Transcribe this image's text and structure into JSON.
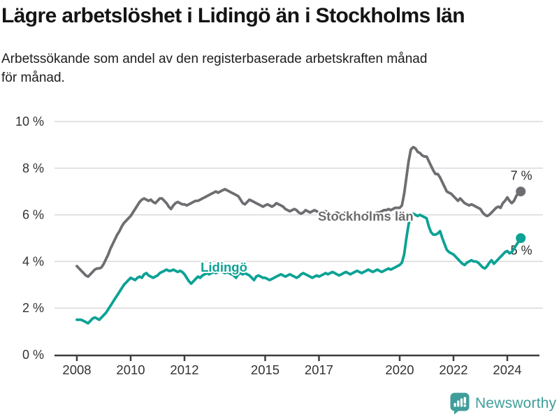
{
  "header": {
    "title": "Lägre arbetslöshet i Lidingö än i Stockholms län",
    "subtitle_lines": [
      "Arbetssökande som andel av den registerbaserade arbetskraften månad",
      "för månad."
    ]
  },
  "footer": {
    "brand": "Newsworthy",
    "brand_color": "#3f9e99"
  },
  "chart_data": {
    "type": "line",
    "x_start_year": 2008,
    "points_per_year": 12,
    "x_end_year": 2024.5,
    "ylim": [
      0,
      10
    ],
    "y_ticks": [
      0,
      2,
      4,
      6,
      8,
      10
    ],
    "y_tick_suffix": " %",
    "x_ticks": [
      2008,
      2010,
      2012,
      2015,
      2017,
      2020,
      2022,
      2024
    ],
    "grid": "horizontal",
    "legend_position": "inline-labels",
    "colors": {
      "grid": "#d9d9d9",
      "axis": "#3d3d3d",
      "tick_text": "#333333"
    },
    "series": [
      {
        "name": "Stockholms län",
        "color": "#6e6e72",
        "end_label": "7 %",
        "end_value": 7.0,
        "values": [
          3.8,
          3.7,
          3.6,
          3.5,
          3.4,
          3.35,
          3.45,
          3.55,
          3.65,
          3.7,
          3.7,
          3.75,
          3.9,
          4.1,
          4.3,
          4.55,
          4.75,
          4.95,
          5.15,
          5.3,
          5.5,
          5.65,
          5.75,
          5.85,
          5.95,
          6.1,
          6.25,
          6.4,
          6.55,
          6.65,
          6.7,
          6.65,
          6.6,
          6.65,
          6.55,
          6.5,
          6.6,
          6.7,
          6.7,
          6.6,
          6.5,
          6.35,
          6.25,
          6.4,
          6.5,
          6.55,
          6.5,
          6.45,
          6.45,
          6.4,
          6.45,
          6.5,
          6.55,
          6.6,
          6.6,
          6.65,
          6.7,
          6.75,
          6.8,
          6.85,
          6.9,
          6.95,
          7.0,
          6.95,
          7.0,
          7.05,
          7.1,
          7.05,
          7.0,
          6.95,
          6.9,
          6.85,
          6.8,
          6.65,
          6.5,
          6.45,
          6.55,
          6.65,
          6.6,
          6.55,
          6.5,
          6.45,
          6.4,
          6.35,
          6.4,
          6.45,
          6.4,
          6.35,
          6.4,
          6.5,
          6.45,
          6.4,
          6.35,
          6.25,
          6.2,
          6.15,
          6.2,
          6.25,
          6.2,
          6.1,
          6.05,
          6.1,
          6.2,
          6.15,
          6.1,
          6.15,
          6.2,
          6.15,
          6.1,
          6.05,
          6.1,
          6.15,
          6.1,
          6.05,
          6.0,
          6.05,
          6.1,
          6.05,
          6.0,
          6.05,
          6.1,
          6.05,
          6.0,
          5.95,
          6.0,
          6.05,
          6.0,
          5.95,
          6.0,
          6.05,
          6.1,
          6.05,
          6.0,
          6.05,
          6.1,
          6.1,
          6.15,
          6.2,
          6.2,
          6.25,
          6.2,
          6.25,
          6.3,
          6.3,
          6.3,
          6.4,
          6.9,
          7.6,
          8.3,
          8.8,
          8.9,
          8.85,
          8.7,
          8.65,
          8.55,
          8.5,
          8.5,
          8.3,
          8.1,
          7.9,
          7.75,
          7.75,
          7.6,
          7.4,
          7.2,
          7.0,
          6.95,
          6.9,
          6.8,
          6.7,
          6.6,
          6.7,
          6.6,
          6.5,
          6.45,
          6.4,
          6.45,
          6.4,
          6.35,
          6.3,
          6.25,
          6.1,
          6.0,
          5.95,
          6.0,
          6.1,
          6.2,
          6.3,
          6.35,
          6.3,
          6.5,
          6.6,
          6.75,
          6.6,
          6.5,
          6.6,
          6.8,
          6.95,
          7.0
        ]
      },
      {
        "name": "Lidingö",
        "color": "#0ca295",
        "end_label": "5 %",
        "end_value": 5.0,
        "values": [
          1.5,
          1.5,
          1.5,
          1.45,
          1.4,
          1.35,
          1.45,
          1.55,
          1.6,
          1.55,
          1.5,
          1.6,
          1.7,
          1.8,
          1.95,
          2.1,
          2.25,
          2.4,
          2.55,
          2.7,
          2.85,
          3.0,
          3.1,
          3.2,
          3.3,
          3.25,
          3.2,
          3.3,
          3.35,
          3.3,
          3.45,
          3.5,
          3.4,
          3.35,
          3.3,
          3.35,
          3.4,
          3.5,
          3.55,
          3.6,
          3.65,
          3.6,
          3.6,
          3.65,
          3.6,
          3.55,
          3.6,
          3.55,
          3.45,
          3.3,
          3.15,
          3.05,
          3.15,
          3.25,
          3.35,
          3.3,
          3.4,
          3.45,
          3.5,
          3.45,
          3.5,
          3.55,
          3.5,
          3.55,
          3.6,
          3.55,
          3.5,
          3.55,
          3.5,
          3.45,
          3.4,
          3.3,
          3.45,
          3.5,
          3.45,
          3.5,
          3.45,
          3.4,
          3.3,
          3.2,
          3.35,
          3.4,
          3.35,
          3.3,
          3.3,
          3.25,
          3.2,
          3.25,
          3.3,
          3.35,
          3.4,
          3.45,
          3.4,
          3.35,
          3.4,
          3.45,
          3.4,
          3.35,
          3.3,
          3.35,
          3.45,
          3.5,
          3.45,
          3.4,
          3.35,
          3.3,
          3.35,
          3.4,
          3.35,
          3.4,
          3.45,
          3.5,
          3.45,
          3.5,
          3.55,
          3.5,
          3.45,
          3.4,
          3.45,
          3.5,
          3.55,
          3.5,
          3.45,
          3.5,
          3.55,
          3.6,
          3.55,
          3.5,
          3.55,
          3.6,
          3.65,
          3.6,
          3.55,
          3.6,
          3.65,
          3.6,
          3.55,
          3.6,
          3.65,
          3.7,
          3.65,
          3.7,
          3.75,
          3.8,
          3.85,
          3.95,
          4.3,
          5.0,
          5.6,
          5.95,
          6.05,
          6.0,
          5.95,
          6.0,
          5.95,
          5.9,
          5.85,
          5.5,
          5.25,
          5.15,
          5.15,
          5.2,
          5.3,
          5.0,
          4.75,
          4.5,
          4.4,
          4.35,
          4.3,
          4.2,
          4.1,
          4.0,
          3.9,
          3.85,
          3.95,
          4.0,
          4.05,
          4.0,
          4.0,
          3.95,
          3.85,
          3.75,
          3.7,
          3.8,
          3.95,
          4.05,
          3.9,
          4.0,
          4.1,
          4.2,
          4.3,
          4.4,
          4.45,
          4.35,
          4.4,
          4.55,
          4.7,
          4.85,
          5.0
        ]
      }
    ],
    "annotations": [
      {
        "text": "7 %",
        "year": 2024.12,
        "value": 7.5,
        "color": "#2b2b2b",
        "bold": false,
        "size": 18,
        "halo": false,
        "layer": "below"
      },
      {
        "text": "5 %",
        "year": 2024.12,
        "value": 4.3,
        "color": "#2b2b2b",
        "bold": false,
        "size": 18,
        "halo": false,
        "layer": "below"
      },
      {
        "text": "Stockholms län",
        "year": 2016.96,
        "value": 5.75,
        "color": "#6d6d70",
        "bold": true,
        "size": 18.5,
        "halo": true,
        "layer": "above"
      },
      {
        "text": "Lidingö",
        "year": 2012.6,
        "value": 3.56,
        "color": "#0ca295",
        "bold": true,
        "size": 18.5,
        "halo": true,
        "layer": "above"
      }
    ]
  }
}
